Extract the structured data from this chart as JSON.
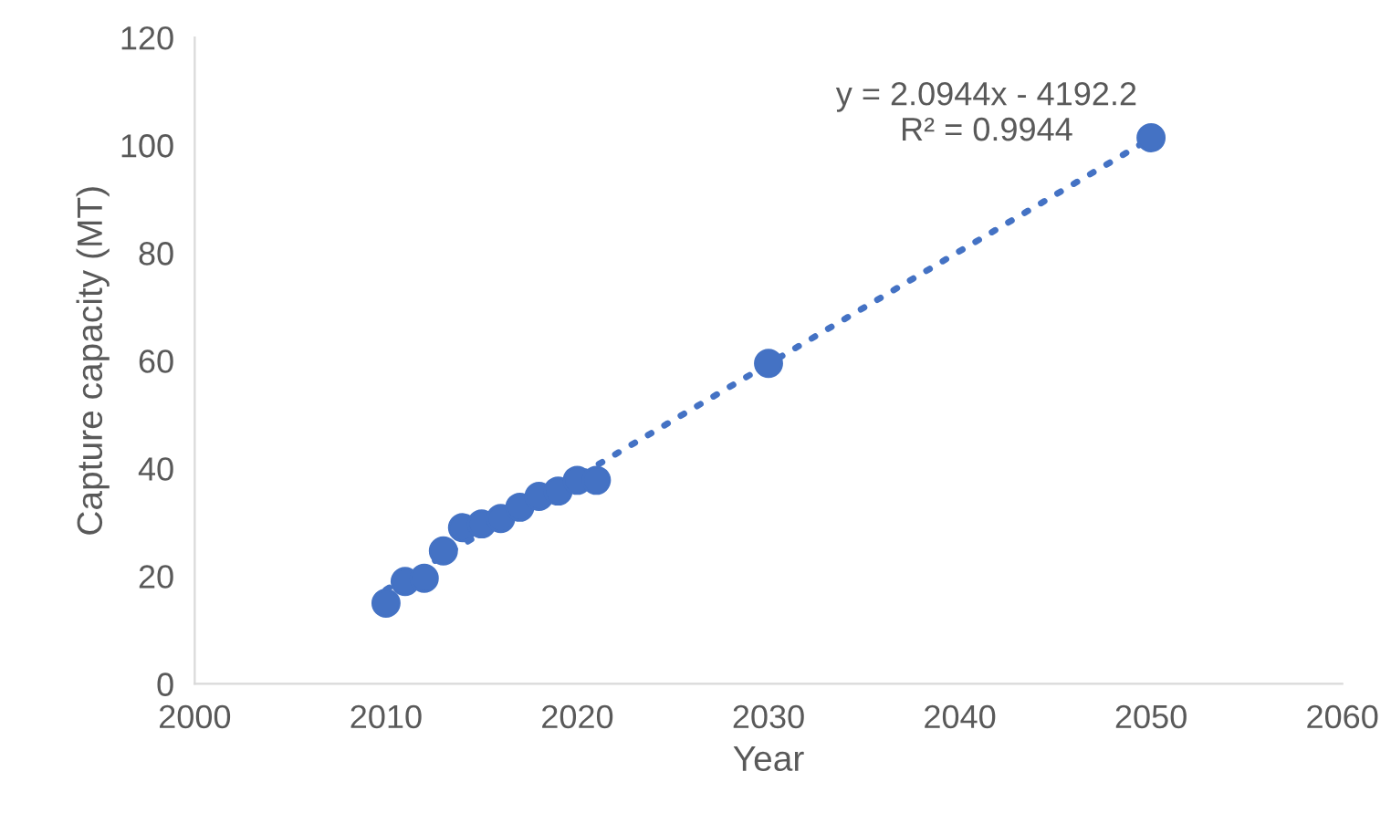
{
  "chart_data": {
    "type": "scatter",
    "xlabel": "Year",
    "ylabel": "Capture capacity (MT)",
    "xlim": [
      2000,
      2060
    ],
    "xticks": [
      2000,
      2010,
      2020,
      2030,
      2040,
      2050,
      2060
    ],
    "ylim": [
      0,
      120
    ],
    "yticks": [
      0,
      20,
      40,
      60,
      80,
      100,
      120
    ],
    "grid": false,
    "legend": false,
    "series": [
      {
        "marker": "circle",
        "color": "#4472c4",
        "x": [
          2010,
          2011,
          2012,
          2013,
          2014,
          2015,
          2016,
          2017,
          2018,
          2019,
          2020,
          2021,
          2030,
          2050
        ],
        "values": [
          15,
          19,
          19.6,
          24.7,
          29,
          29.7,
          30.7,
          32.8,
          34.8,
          35.8,
          37.8,
          37.8,
          59.5,
          101.4
        ]
      },
      {
        "type": "line",
        "color": "#4472c4",
        "line_style": "dotted",
        "x": [
          2010,
          2050
        ],
        "values": [
          17.5,
          101.3
        ]
      }
    ],
    "annotations": [
      "y = 2.0944x - 4192.2\nR² = 0.9944"
    ]
  }
}
